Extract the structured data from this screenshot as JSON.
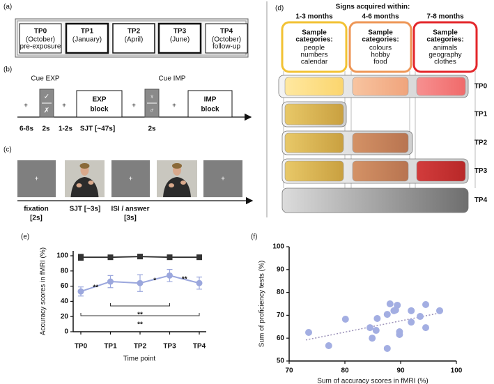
{
  "panel_labels": [
    "(a)",
    "(b)",
    "(c)",
    "(d)",
    "(e)",
    "(f)"
  ],
  "timepoints": [
    {
      "label": "TP0",
      "lines": [
        "(October)",
        "pre-exposure"
      ]
    },
    {
      "label": "TP1",
      "lines": [
        "(January)"
      ]
    },
    {
      "label": "TP2",
      "lines": [
        "(April)"
      ]
    },
    {
      "label": "TP3",
      "lines": [
        "(June)"
      ]
    },
    {
      "label": "TP4",
      "lines": [
        "(October)",
        "follow-up"
      ]
    }
  ],
  "paradigm": {
    "cues": [
      "Cue EXP",
      "Cue IMP"
    ],
    "fixation": "+",
    "cue_symbols": [
      [
        "✓",
        "✗"
      ],
      [
        "♀",
        "♂"
      ]
    ],
    "blocks": [
      [
        "EXP",
        "block"
      ],
      [
        "IMP",
        "block"
      ]
    ],
    "timings": [
      "6-8s",
      "2s",
      "1-2s",
      "SJT [~47s]",
      "2s"
    ]
  },
  "trial": {
    "labels": [
      [
        "fixation",
        "[2s]"
      ],
      [
        "SJT [~3s]"
      ],
      [
        "ISI / answer",
        "[3s]"
      ]
    ]
  },
  "acquisition": {
    "title": "Signs acquired within:",
    "columns": [
      {
        "header": "1-3 months",
        "label": [
          "Sample",
          "categories:"
        ],
        "items": [
          "people",
          "numbers",
          "calendar"
        ],
        "color": "#f2c233"
      },
      {
        "header": "4-6 months",
        "label": [
          "Sample",
          "categories:"
        ],
        "items": [
          "colours",
          "hobby",
          "food"
        ],
        "color": "#ee9656"
      },
      {
        "header": "7-8 months",
        "label": [
          "Sample",
          "categories:"
        ],
        "items": [
          "animals",
          "geography",
          "clothes"
        ],
        "color": "#e3262a"
      }
    ],
    "rows": [
      "TP0",
      "TP1",
      "TP2",
      "TP3",
      "TP4"
    ]
  },
  "chart_data": [
    {
      "type": "line",
      "categories": [
        "TP0",
        "TP1",
        "TP2",
        "TP3",
        "TP4"
      ],
      "x_label": "Time point",
      "y_label": "Accuracy scores in fMRI (%)",
      "ylim": [
        0,
        100
      ],
      "yticks": [
        0,
        20,
        40,
        60,
        80,
        100
      ],
      "grid": false,
      "series": [
        {
          "color": "#333333",
          "marker": "square",
          "values": [
            98,
            98,
            99,
            98,
            98
          ],
          "errors": [
            4,
            2,
            2,
            3,
            3
          ]
        },
        {
          "color": "#9ba7dd",
          "marker": "circle",
          "values": [
            53,
            66,
            64,
            74,
            64
          ],
          "errors": [
            6,
            8,
            11,
            8,
            8
          ]
        }
      ],
      "pair_annotations": [
        {
          "between": [
            "TP0",
            "TP1"
          ],
          "text": "**"
        },
        {
          "between": [
            "TP2",
            "TP3"
          ],
          "text": "*"
        },
        {
          "between": [
            "TP3",
            "TP4"
          ],
          "text": "**"
        }
      ],
      "brackets": [
        {
          "from": "TP1",
          "to": "TP3",
          "text": "**"
        },
        {
          "from": "TP0",
          "to": "TP4",
          "text": "**"
        }
      ]
    },
    {
      "type": "scatter",
      "x_label": "Sum of accuracy scores in fMRI (%)",
      "y_label": "Sum of proficiency tests (%)",
      "xlim": [
        70,
        100
      ],
      "ylim": [
        50,
        100
      ],
      "xticks": [
        70,
        80,
        90,
        100
      ],
      "yticks": [
        50,
        60,
        70,
        80,
        90,
        100
      ],
      "x": [
        73.5,
        77.1,
        80.1,
        84.5,
        84.9,
        85.6,
        85.8,
        87.6,
        88.1,
        88.8,
        89.4,
        89.1,
        89.8,
        89.8,
        87.6,
        91.9,
        91.9,
        93.5,
        94.5,
        94.5,
        97
      ],
      "series": [
        {
          "color": "#a3aee2",
          "values": [
            62.5,
            56.7,
            68.3,
            64.6,
            60,
            63.4,
            68.6,
            70.4,
            75,
            72,
            74.4,
            72.3,
            62.8,
            61.6,
            55.5,
            72,
            67,
            69.5,
            74.7,
            64.6,
            72
          ]
        }
      ],
      "trend": {
        "color": "#9a90b8",
        "x": [
          73,
          97
        ],
        "values": [
          59.2,
          71
        ]
      }
    }
  ]
}
